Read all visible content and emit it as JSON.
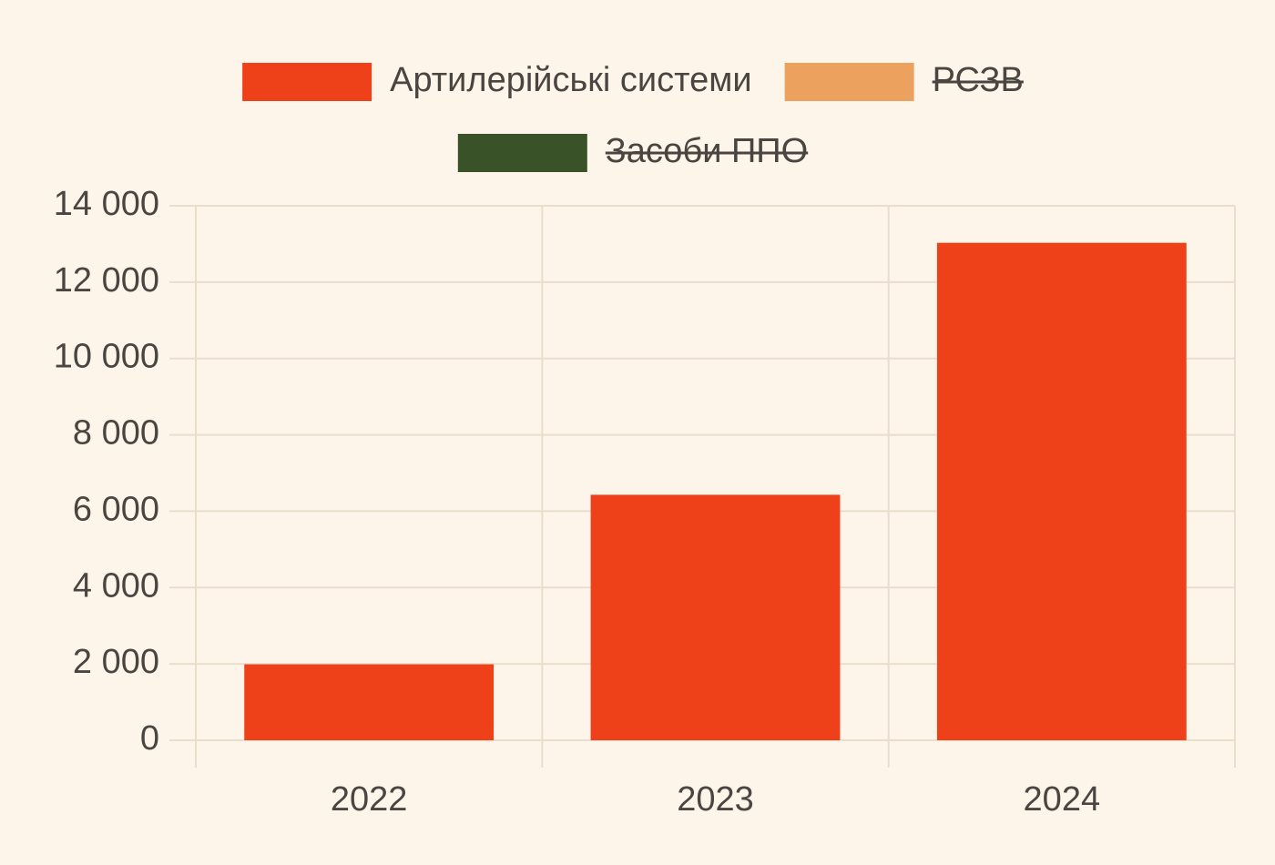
{
  "chart_data": {
    "type": "bar",
    "categories": [
      "2022",
      "2023",
      "2024"
    ],
    "series": [
      {
        "name": "Артилерійські системи",
        "color": "#ee4119",
        "values": [
          1990,
          6430,
          13030
        ]
      },
      {
        "name": "РСЗВ",
        "color": "#eda15f",
        "values": [
          null,
          null,
          null
        ],
        "hidden": true
      },
      {
        "name": "Засоби ППО",
        "color": "#3a5227",
        "values": [
          null,
          null,
          null
        ],
        "hidden": true
      }
    ],
    "ylim": [
      0,
      14000
    ],
    "yticks": [
      0,
      {
        "value": 2000,
        "label": "2 000"
      },
      {
        "value": 4000,
        "label": "4 000"
      },
      {
        "value": 6000,
        "label": "6 000"
      },
      {
        "value": 8000,
        "label": "8 000"
      },
      {
        "value": 10000,
        "label": "10 000"
      },
      {
        "value": 12000,
        "label": "12 000"
      },
      {
        "value": 14000,
        "label": "14 000"
      }
    ],
    "grid": true,
    "legend": "top"
  }
}
